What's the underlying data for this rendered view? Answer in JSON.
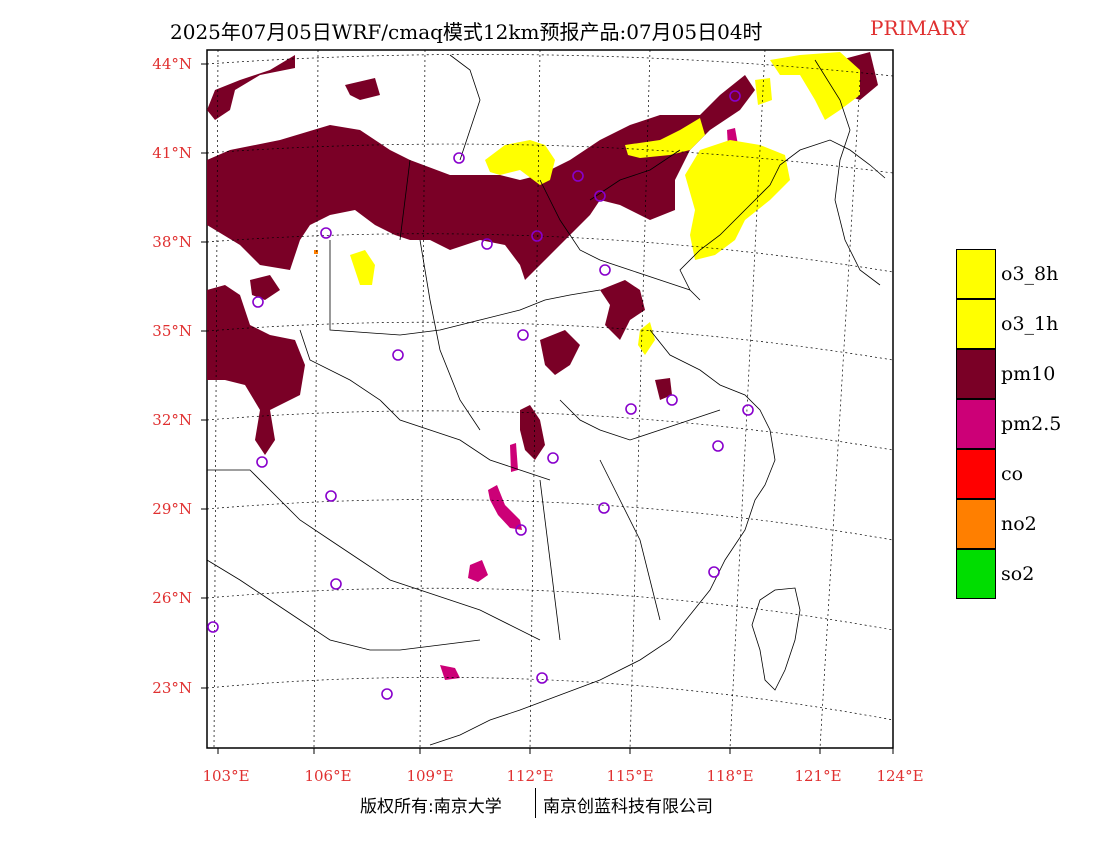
{
  "title": {
    "main": "2025年07月05日WRF/cmaq模式12km预报产品:07月05日04时",
    "tag": "PRIMARY",
    "tag_color": "#e03030"
  },
  "axes": {
    "lat_labels": [
      "44°N",
      "41°N",
      "38°N",
      "35°N",
      "32°N",
      "29°N",
      "26°N",
      "23°N"
    ],
    "lon_labels": [
      "103°E",
      "106°E",
      "109°E",
      "112°E",
      "115°E",
      "118°E",
      "121°E",
      "124°E"
    ],
    "label_color": "#e03030"
  },
  "legend": {
    "items": [
      {
        "label": "o3_8h",
        "color": "#ffff00"
      },
      {
        "label": "o3_1h",
        "color": "#ffff00"
      },
      {
        "label": "pm10",
        "color": "#7a0026"
      },
      {
        "label": "pm2.5",
        "color": "#cc0077"
      },
      {
        "label": "co",
        "color": "#ff0000"
      },
      {
        "label": "no2",
        "color": "#ff7f00"
      },
      {
        "label": "so2",
        "color": "#00dd00"
      }
    ]
  },
  "footer": {
    "left": "版权所有:南京大学",
    "right": "南京创蓝科技有限公司"
  },
  "map": {
    "station_marker": "circle-icon",
    "station_color": "#8800cc"
  }
}
